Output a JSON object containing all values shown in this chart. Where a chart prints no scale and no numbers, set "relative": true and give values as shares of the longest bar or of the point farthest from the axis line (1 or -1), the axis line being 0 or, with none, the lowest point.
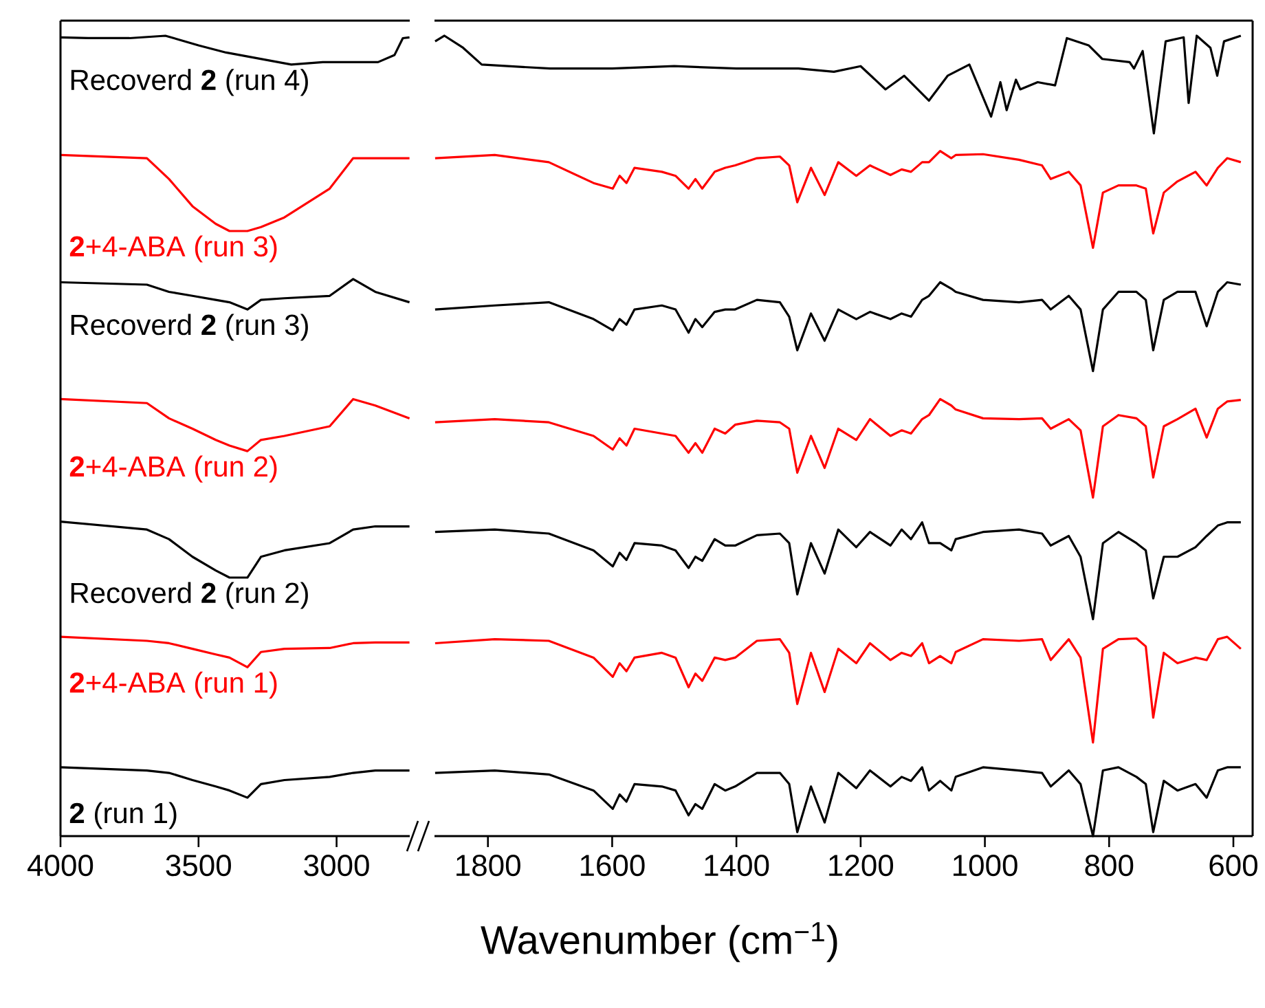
{
  "chart_data": [
    {
      "type": "line",
      "relative": true,
      "xlim": [
        4000,
        2735
      ],
      "xticks": [
        4000,
        3500,
        3000
      ],
      "series": [
        {
          "name": "Recoverd **2** (run 4)",
          "color": "#000000",
          "x": [
            4000,
            3900,
            3750,
            3620,
            3500,
            3400,
            3164,
            3050,
            2950,
            2850,
            2790,
            2760,
            2736
          ],
          "values": [
            0.998,
            0.997,
            0.997,
            1.0,
            0.988,
            0.979,
            0.964,
            0.967,
            0.967,
            0.967,
            0.976,
            0.997,
            0.998
          ]
        },
        {
          "name": "**2**+4-ABA (run 3)",
          "color": "#ff0000",
          "x": [
            4000,
            3687,
            3607,
            3522,
            3438,
            3388,
            3323,
            3274,
            3189,
            3025,
            2940,
            2860,
            2736
          ],
          "values": [
            0.851,
            0.847,
            0.821,
            0.787,
            0.765,
            0.756,
            0.756,
            0.761,
            0.773,
            0.809,
            0.847,
            0.847,
            0.847
          ]
        },
        {
          "name": "Recoverd **2** (run 3)",
          "color": "#000000",
          "x": [
            4000,
            3687,
            3607,
            3522,
            3438,
            3388,
            3323,
            3274,
            3189,
            3025,
            2940,
            2860,
            2736
          ],
          "values": [
            0.692,
            0.689,
            0.68,
            0.675,
            0.67,
            0.667,
            0.658,
            0.67,
            0.672,
            0.675,
            0.696,
            0.68,
            0.667
          ]
        },
        {
          "name": "**2**+4-ABA (run 2)",
          "color": "#ff0000",
          "x": [
            4000,
            3687,
            3607,
            3522,
            3438,
            3388,
            3323,
            3274,
            3189,
            3025,
            2940,
            2860,
            2736
          ],
          "values": [
            0.546,
            0.541,
            0.522,
            0.509,
            0.495,
            0.488,
            0.481,
            0.495,
            0.5,
            0.512,
            0.546,
            0.538,
            0.522
          ]
        },
        {
          "name": "Recoverd **2** (run 2)",
          "color": "#000000",
          "x": [
            4000,
            3687,
            3607,
            3522,
            3438,
            3388,
            3323,
            3274,
            3189,
            3025,
            2940,
            2860,
            2736
          ],
          "values": [
            0.393,
            0.383,
            0.371,
            0.349,
            0.332,
            0.323,
            0.323,
            0.349,
            0.357,
            0.366,
            0.383,
            0.387,
            0.387
          ]
        },
        {
          "name": "**2**+4-ABA (run 1)",
          "color": "#ff0000",
          "x": [
            4000,
            3687,
            3607,
            3522,
            3438,
            3388,
            3323,
            3274,
            3189,
            3025,
            2940,
            2860,
            2736
          ],
          "values": [
            0.249,
            0.244,
            0.241,
            0.234,
            0.227,
            0.223,
            0.211,
            0.23,
            0.234,
            0.235,
            0.241,
            0.242,
            0.242
          ]
        },
        {
          "name": "**2** (run 1)",
          "color": "#000000",
          "x": [
            4000,
            3687,
            3607,
            3522,
            3438,
            3388,
            3323,
            3274,
            3189,
            3025,
            2940,
            2860,
            2736
          ],
          "values": [
            0.086,
            0.082,
            0.079,
            0.07,
            0.062,
            0.057,
            0.048,
            0.065,
            0.07,
            0.074,
            0.079,
            0.082,
            0.082
          ]
        }
      ]
    },
    {
      "type": "line",
      "relative": true,
      "xlim": [
        1886,
        569
      ],
      "xticks": [
        1800,
        1600,
        1400,
        1200,
        1000,
        800,
        600
      ],
      "xlabel": "Wavenumber (cm$^{−1}$)",
      "x": [
        1885,
        1789,
        1702,
        1630,
        1599,
        1588,
        1577,
        1564,
        1520,
        1498,
        1477,
        1466,
        1455,
        1435,
        1418,
        1402,
        1367,
        1330,
        1315,
        1302,
        1280,
        1258,
        1236,
        1207,
        1185,
        1152,
        1134,
        1119,
        1101,
        1090,
        1072,
        1054,
        1047,
        1003,
        945,
        908,
        894,
        865,
        846,
        826,
        810,
        785,
        756,
        741,
        729,
        712,
        690,
        661,
        643,
        625,
        610,
        588
      ],
      "series": [
        {
          "color": "#000000",
          "x": [
            1885,
            1870,
            1840,
            1810,
            1700,
            1600,
            1500,
            1400,
            1300,
            1243,
            1200,
            1160,
            1130,
            1090,
            1060,
            1025,
            990,
            975,
            965,
            950,
            943,
            915,
            887,
            868,
            833,
            811,
            767,
            760,
            746,
            728,
            709,
            680,
            672,
            659,
            637,
            626,
            615,
            588
          ],
          "values": [
            0.993,
            1.0,
            0.985,
            0.964,
            0.959,
            0.959,
            0.962,
            0.959,
            0.959,
            0.955,
            0.962,
            0.933,
            0.95,
            0.919,
            0.95,
            0.964,
            0.899,
            0.942,
            0.907,
            0.945,
            0.933,
            0.942,
            0.938,
            0.997,
            0.988,
            0.971,
            0.967,
            0.959,
            0.981,
            0.878,
            0.993,
            0.998,
            0.916,
            1.0,
            0.985,
            0.95,
            0.993,
            1.0
          ]
        },
        {
          "color": "#ff0000",
          "values": [
            0.847,
            0.851,
            0.842,
            0.816,
            0.809,
            0.825,
            0.816,
            0.835,
            0.83,
            0.825,
            0.809,
            0.821,
            0.809,
            0.83,
            0.835,
            0.838,
            0.847,
            0.849,
            0.838,
            0.792,
            0.835,
            0.801,
            0.842,
            0.825,
            0.838,
            0.826,
            0.833,
            0.83,
            0.842,
            0.842,
            0.856,
            0.847,
            0.851,
            0.852,
            0.845,
            0.838,
            0.821,
            0.83,
            0.813,
            0.735,
            0.804,
            0.813,
            0.813,
            0.809,
            0.753,
            0.804,
            0.818,
            0.83,
            0.813,
            0.835,
            0.847,
            0.842
          ]
        },
        {
          "color": "#000000",
          "values": [
            0.658,
            0.663,
            0.667,
            0.646,
            0.632,
            0.646,
            0.639,
            0.658,
            0.663,
            0.658,
            0.629,
            0.646,
            0.636,
            0.655,
            0.658,
            0.658,
            0.67,
            0.667,
            0.649,
            0.607,
            0.653,
            0.619,
            0.658,
            0.646,
            0.655,
            0.646,
            0.653,
            0.649,
            0.67,
            0.675,
            0.692,
            0.684,
            0.68,
            0.67,
            0.667,
            0.67,
            0.658,
            0.675,
            0.658,
            0.581,
            0.658,
            0.68,
            0.68,
            0.67,
            0.607,
            0.67,
            0.68,
            0.68,
            0.637,
            0.68,
            0.692,
            0.689
          ]
        },
        {
          "color": "#ff0000",
          "values": [
            0.517,
            0.521,
            0.517,
            0.5,
            0.483,
            0.497,
            0.488,
            0.509,
            0.503,
            0.5,
            0.479,
            0.491,
            0.479,
            0.509,
            0.503,
            0.514,
            0.519,
            0.517,
            0.509,
            0.454,
            0.5,
            0.46,
            0.509,
            0.495,
            0.521,
            0.5,
            0.507,
            0.503,
            0.521,
            0.526,
            0.546,
            0.538,
            0.533,
            0.522,
            0.521,
            0.522,
            0.509,
            0.521,
            0.507,
            0.423,
            0.512,
            0.526,
            0.522,
            0.512,
            0.448,
            0.512,
            0.521,
            0.534,
            0.498,
            0.534,
            0.543,
            0.545
          ]
        },
        {
          "color": "#000000",
          "values": [
            0.38,
            0.383,
            0.378,
            0.357,
            0.337,
            0.354,
            0.345,
            0.366,
            0.363,
            0.357,
            0.335,
            0.349,
            0.344,
            0.371,
            0.363,
            0.363,
            0.376,
            0.378,
            0.366,
            0.302,
            0.366,
            0.328,
            0.383,
            0.361,
            0.38,
            0.363,
            0.383,
            0.371,
            0.392,
            0.366,
            0.366,
            0.357,
            0.371,
            0.38,
            0.383,
            0.378,
            0.363,
            0.375,
            0.349,
            0.271,
            0.366,
            0.38,
            0.366,
            0.357,
            0.297,
            0.349,
            0.349,
            0.361,
            0.375,
            0.388,
            0.392,
            0.392
          ]
        },
        {
          "color": "#ff0000",
          "values": [
            0.241,
            0.246,
            0.244,
            0.223,
            0.199,
            0.216,
            0.206,
            0.223,
            0.229,
            0.223,
            0.186,
            0.203,
            0.194,
            0.223,
            0.22,
            0.223,
            0.244,
            0.246,
            0.229,
            0.165,
            0.229,
            0.18,
            0.234,
            0.216,
            0.241,
            0.22,
            0.229,
            0.225,
            0.241,
            0.216,
            0.225,
            0.216,
            0.23,
            0.246,
            0.244,
            0.246,
            0.22,
            0.246,
            0.223,
            0.117,
            0.234,
            0.246,
            0.247,
            0.237,
            0.148,
            0.229,
            0.216,
            0.223,
            0.22,
            0.246,
            0.249,
            0.234
          ]
        },
        {
          "color": "#000000",
          "values": [
            0.079,
            0.082,
            0.077,
            0.057,
            0.034,
            0.052,
            0.043,
            0.065,
            0.062,
            0.057,
            0.026,
            0.04,
            0.034,
            0.065,
            0.057,
            0.062,
            0.079,
            0.079,
            0.065,
            0.005,
            0.062,
            0.017,
            0.079,
            0.06,
            0.082,
            0.062,
            0.074,
            0.069,
            0.086,
            0.057,
            0.069,
            0.057,
            0.074,
            0.086,
            0.082,
            0.079,
            0.062,
            0.082,
            0.065,
            0.0,
            0.082,
            0.086,
            0.074,
            0.065,
            0.005,
            0.069,
            0.057,
            0.065,
            0.048,
            0.082,
            0.086,
            0.086
          ]
        }
      ]
    }
  ]
}
